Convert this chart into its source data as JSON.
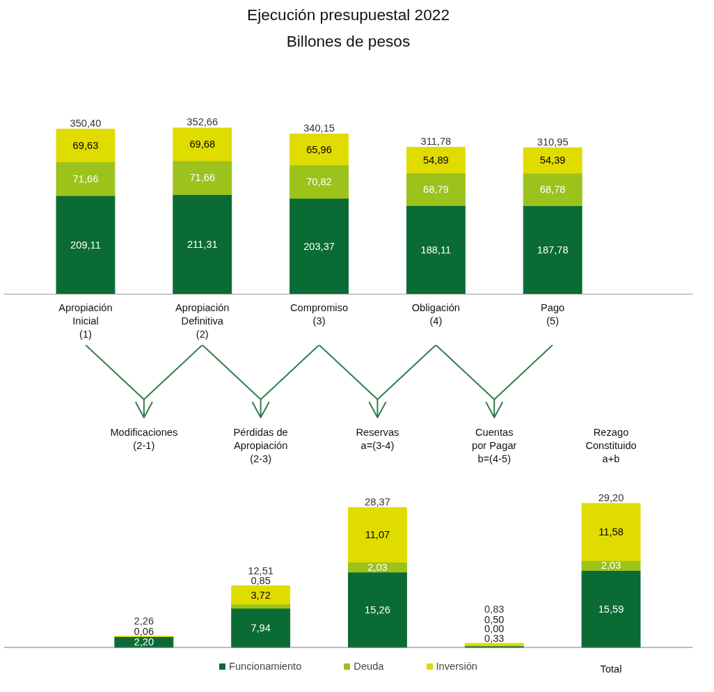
{
  "chart_data": [
    {
      "type": "bar",
      "title": "Ejecución presupuestal 2022",
      "subtitle": "Billones de pesos",
      "stacked": true,
      "tick_labels": "x",
      "categories": [
        "Apropiación\nInicial\n(1)",
        "Apropiación\nDefinitiva\n(2)",
        "Compromiso\n(3)",
        "Obligación\n(4)",
        "Pago\n(5)"
      ],
      "series": [
        {
          "color": "#0b6b35",
          "values": [
            209.11,
            211.31,
            203.37,
            188.11,
            187.78
          ],
          "value_labels": [
            "209,11",
            "211,31",
            "203,37",
            "188,11",
            "187,78"
          ]
        },
        {
          "color": "#9cc21c",
          "values": [
            71.66,
            71.66,
            70.82,
            68.79,
            68.78
          ],
          "value_labels": [
            "71,66",
            "71,66",
            "70,82",
            "68,79",
            "68,78"
          ]
        },
        {
          "color": "#e0dc00",
          "values": [
            69.63,
            69.68,
            65.96,
            54.89,
            54.39
          ],
          "value_labels": [
            "69,63",
            "69,68",
            "65,96",
            "54,89",
            "54,39"
          ]
        }
      ],
      "totals": [
        "350,40",
        "352,66",
        "340,15",
        "311,78",
        "310,95"
      ]
    },
    {
      "type": "bar",
      "stacked": true,
      "tick_labels": "x",
      "legend": "bottom",
      "categories": [
        "Modificaciones\n(2-1)",
        "Pérdidas de\nApropiación\n(2-3)",
        "Reservas\na=(3-4)",
        "Cuentas\npor Pagar\nb=(4-5)",
        "Rezago\nConstituido\na+b"
      ],
      "series": [
        {
          "name": "Funcionamiento",
          "color": "#0b6b35",
          "values": [
            2.2,
            7.94,
            15.26,
            0.33,
            15.59
          ],
          "value_labels": [
            "2,20",
            "7,94",
            "15,26",
            "0,33",
            "15,59"
          ]
        },
        {
          "name": "Deuda",
          "color": "#9cc21c",
          "values": [
            null,
            0.85,
            2.03,
            0.0,
            2.03
          ],
          "value_labels": [
            null,
            "0,85",
            "2,03",
            "0,00",
            "2,03"
          ]
        },
        {
          "name": "Inversión",
          "color": "#e0dc00",
          "values": [
            0.06,
            3.72,
            11.07,
            0.5,
            11.58
          ],
          "value_labels": [
            "0,06",
            "3,72",
            "11,07",
            "0,50",
            "11,58"
          ]
        }
      ],
      "totals": [
        "2,26",
        "12,51",
        "28,37",
        "0,83",
        "29,20"
      ],
      "annotations": [
        "Total"
      ]
    }
  ]
}
